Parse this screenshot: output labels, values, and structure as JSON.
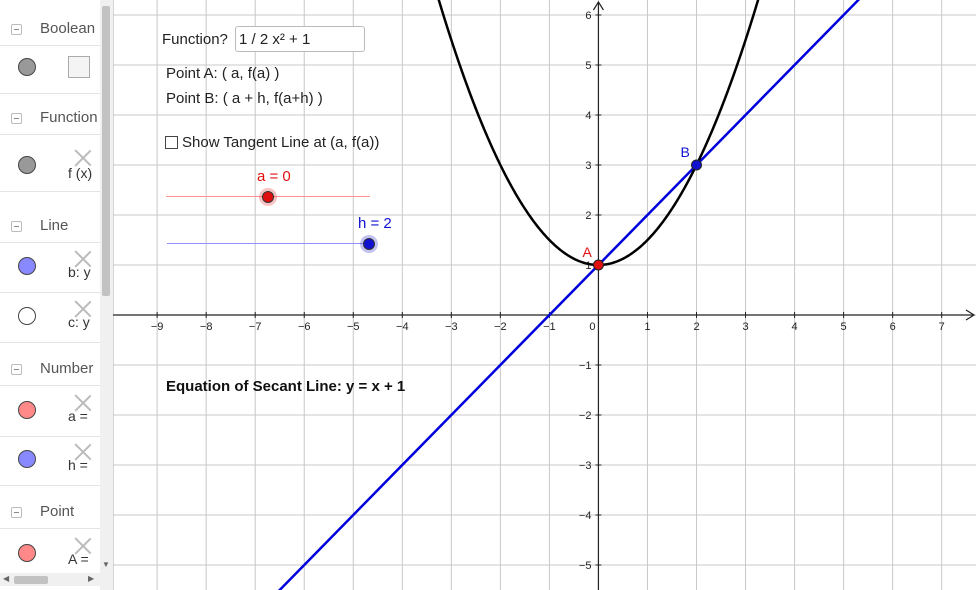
{
  "algebra": {
    "categories": [
      {
        "label": "Boolean"
      },
      {
        "label": "Function"
      },
      {
        "label": "Line"
      },
      {
        "label": "Number"
      },
      {
        "label": "Point"
      }
    ],
    "rows": [
      {
        "text": "",
        "color": "#999999"
      },
      {
        "text": "f (x)",
        "color": "#999999"
      },
      {
        "text": "b: y",
        "color": "#8888ff"
      },
      {
        "text": "c: y",
        "color": "#ffffff"
      },
      {
        "text": "a =",
        "color": "#ff8888"
      },
      {
        "text": "h =",
        "color": "#8888ff"
      },
      {
        "text": "A =",
        "color": "#ff8888"
      }
    ]
  },
  "controls": {
    "function_label": "Function?",
    "function_value": "1 / 2 x² + 1",
    "point_a_text": "Point A: ( a, f(a) )",
    "point_b_text": "Point B: ( a + h, f(a+h) )",
    "tangent_label": "Show Tangent Line at (a, f(a))",
    "tangent_checked": false,
    "slider_a": {
      "label": "a = 0",
      "value": 0,
      "color": "#e01010"
    },
    "slider_h": {
      "label": "h = 2",
      "value": 2,
      "color": "#1010d0"
    },
    "secant_equation": "Equation of Secant Line: y = x + 1"
  },
  "graph": {
    "x_range": [
      -9.9,
      7.7
    ],
    "y_range": [
      -5.5,
      6.3
    ],
    "x_ticks": [
      "−9",
      "−8",
      "−7",
      "−6",
      "−5",
      "−4",
      "−3",
      "−2",
      "−1",
      "0",
      "1",
      "2",
      "3",
      "4",
      "5",
      "6",
      "7"
    ],
    "x_tick_values": [
      -9,
      -8,
      -7,
      -6,
      -5,
      -4,
      -3,
      -2,
      -1,
      0,
      1,
      2,
      3,
      4,
      5,
      6,
      7
    ],
    "y_ticks": [
      "−5",
      "−4",
      "−3",
      "−2",
      "−1",
      "1",
      "2",
      "3",
      "4",
      "5",
      "6"
    ],
    "y_tick_values": [
      -5,
      -4,
      -3,
      -2,
      -1,
      1,
      2,
      3,
      4,
      5,
      6
    ],
    "function": "f(x) = 1/2 x² + 1",
    "secant": "y = x + 1",
    "curve_color": "#000000",
    "secant_color": "#0000dd",
    "points": [
      {
        "name": "A",
        "x": 0,
        "y": 1,
        "color": "#e01010"
      },
      {
        "name": "B",
        "x": 2,
        "y": 3,
        "color": "#1010d0"
      }
    ]
  }
}
